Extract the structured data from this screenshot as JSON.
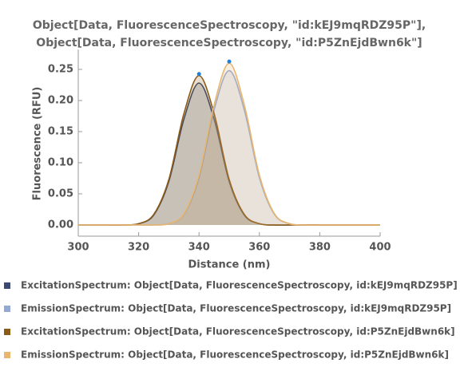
{
  "chart_data": {
    "type": "line",
    "title": "Object[Data, FluorescenceSpectroscopy, \"id:kEJ9mqRDZ95P\"],",
    "subtitle": "Object[Data, FluorescenceSpectroscopy, \"id:P5ZnEjdBwn6k\"]",
    "x_label": "Distance  (nm)",
    "y_label": "Fluorescence  (RFU)",
    "x": [
      300,
      305,
      310,
      315,
      320,
      325,
      330,
      335,
      340,
      345,
      350,
      355,
      360,
      365,
      370,
      375,
      380,
      385,
      390,
      395,
      400
    ],
    "series": [
      {
        "name": "ExcitationSpectrum: Object[Data, FluorescenceSpectroscopy, id:kEJ9mqRDZ95P]",
        "color": "#3b4a6e",
        "values": [
          0,
          0,
          0,
          0,
          0.002,
          0.016,
          0.07,
          0.17,
          0.228,
          0.17,
          0.07,
          0.016,
          0.002,
          0,
          0,
          0,
          0,
          0,
          0,
          0,
          0
        ]
      },
      {
        "name": "EmissionSpectrum: Object[Data, FluorescenceSpectroscopy, id:kEJ9mqRDZ95P]",
        "color": "#94a8d4",
        "values": [
          0,
          0,
          0,
          0,
          0,
          0,
          0.002,
          0.017,
          0.076,
          0.185,
          0.248,
          0.185,
          0.076,
          0.017,
          0.002,
          0,
          0,
          0,
          0,
          0,
          0
        ]
      },
      {
        "name": "ExcitationSpectrum: Object[Data, FluorescenceSpectroscopy, id:P5ZnEjdBwn6k]",
        "color": "#8a5a16",
        "values": [
          0,
          0,
          0,
          0,
          0.002,
          0.017,
          0.073,
          0.179,
          0.24,
          0.179,
          0.073,
          0.017,
          0.002,
          0,
          0,
          0,
          0,
          0,
          0,
          0,
          0
        ]
      },
      {
        "name": "EmissionSpectrum: Object[Data, FluorescenceSpectroscopy, id:P5ZnEjdBwn6k]",
        "color": "#e8b66e",
        "values": [
          0,
          0,
          0,
          0,
          0,
          0,
          0.002,
          0.018,
          0.08,
          0.193,
          0.26,
          0.193,
          0.08,
          0.018,
          0.002,
          0,
          0,
          0,
          0,
          0,
          0
        ]
      }
    ],
    "xlim": [
      300,
      400
    ],
    "xticks": [
      300,
      320,
      340,
      360,
      380,
      400
    ],
    "ylim": [
      -0.018,
      0.282
    ],
    "yticks": [
      {
        "value": 0,
        "label": "0.00"
      },
      {
        "value": 0.05,
        "label": "0.05"
      },
      {
        "value": 0.1,
        "label": "0.10"
      },
      {
        "value": 0.15,
        "label": "0.15"
      },
      {
        "value": 0.2,
        "label": "0.20"
      },
      {
        "value": 0.25,
        "label": "0.25"
      }
    ],
    "peak_marker_color": "#1e7fd8"
  }
}
